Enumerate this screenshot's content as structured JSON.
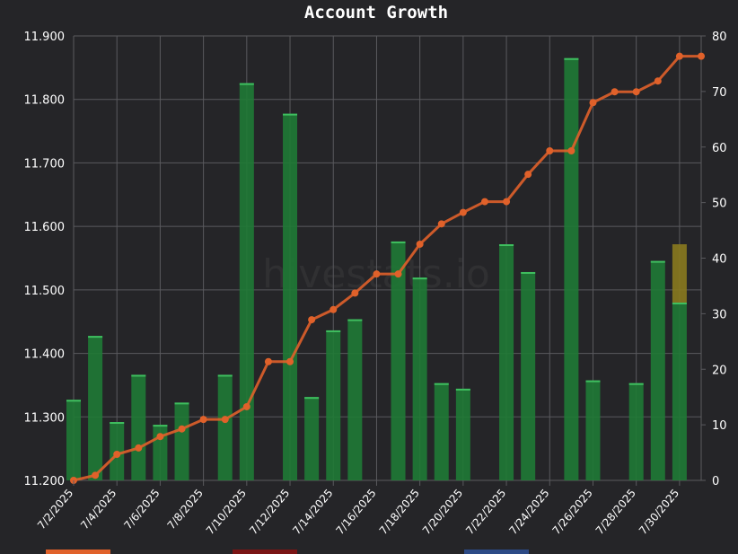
{
  "chart_data": {
    "type": "bar",
    "title": "Account Growth",
    "watermark": "hivestats.io",
    "x_labels": [
      "7/2/2025",
      "7/4/2025",
      "7/6/2025",
      "7/8/2025",
      "7/10/2025",
      "7/12/2025",
      "7/14/2025",
      "7/16/2025",
      "7/18/2025",
      "7/20/2025",
      "7/22/2025",
      "7/24/2025",
      "7/26/2025",
      "7/28/2025",
      "7/30/2025"
    ],
    "dates": [
      "7/2",
      "7/3",
      "7/4",
      "7/5",
      "7/6",
      "7/7",
      "7/8",
      "7/9",
      "7/10",
      "7/11",
      "7/12",
      "7/13",
      "7/14",
      "7/15",
      "7/16",
      "7/17",
      "7/18",
      "7/19",
      "7/20",
      "7/21",
      "7/22",
      "7/23",
      "7/24",
      "7/25",
      "7/26",
      "7/27",
      "7/28",
      "7/29",
      "7/30",
      "7/31"
    ],
    "y_left": {
      "min": 11.2,
      "max": 11.9,
      "ticks": [
        "11.200",
        "11.300",
        "11.400",
        "11.500",
        "11.600",
        "11.700",
        "11.800",
        "11.900"
      ]
    },
    "y_right": {
      "min": 0,
      "max": 80,
      "ticks": [
        "0",
        "10",
        "20",
        "30",
        "40",
        "50",
        "60",
        "70",
        "80"
      ]
    },
    "grid": true,
    "series": [
      {
        "type": "line",
        "color": "#e0612a",
        "axis": "left",
        "values": [
          11.2,
          11.208,
          11.241,
          11.251,
          11.269,
          11.281,
          11.296,
          11.296,
          11.316,
          11.387,
          11.387,
          11.453,
          11.469,
          11.495,
          11.525,
          11.525,
          11.572,
          11.604,
          11.622,
          11.639,
          11.639,
          11.682,
          11.719,
          11.719,
          11.795,
          11.812,
          11.812,
          11.829,
          11.868,
          11.868
        ]
      },
      {
        "type": "bar",
        "color": "#1f7a35",
        "axis": "right",
        "values": [
          14.5,
          26,
          10.5,
          19,
          10,
          14,
          0,
          19,
          71.5,
          0,
          66,
          15,
          27,
          29,
          0,
          43,
          36.5,
          17.5,
          16.5,
          0,
          42.5,
          37.5,
          0,
          76,
          18,
          0,
          17.5,
          39.5,
          32,
          0
        ]
      },
      {
        "type": "bar",
        "color": "#8a7a1e",
        "axis": "right",
        "values": [
          0,
          0,
          0,
          0,
          0,
          0,
          0,
          0,
          0,
          0,
          0,
          0,
          0,
          0,
          0,
          0,
          0,
          0,
          0,
          0,
          0,
          0,
          0,
          0,
          0,
          0,
          0,
          0,
          10.5,
          0
        ]
      }
    ],
    "legend_colors": [
      "#e0612a",
      "#7a1414",
      "#2c4a86"
    ]
  }
}
